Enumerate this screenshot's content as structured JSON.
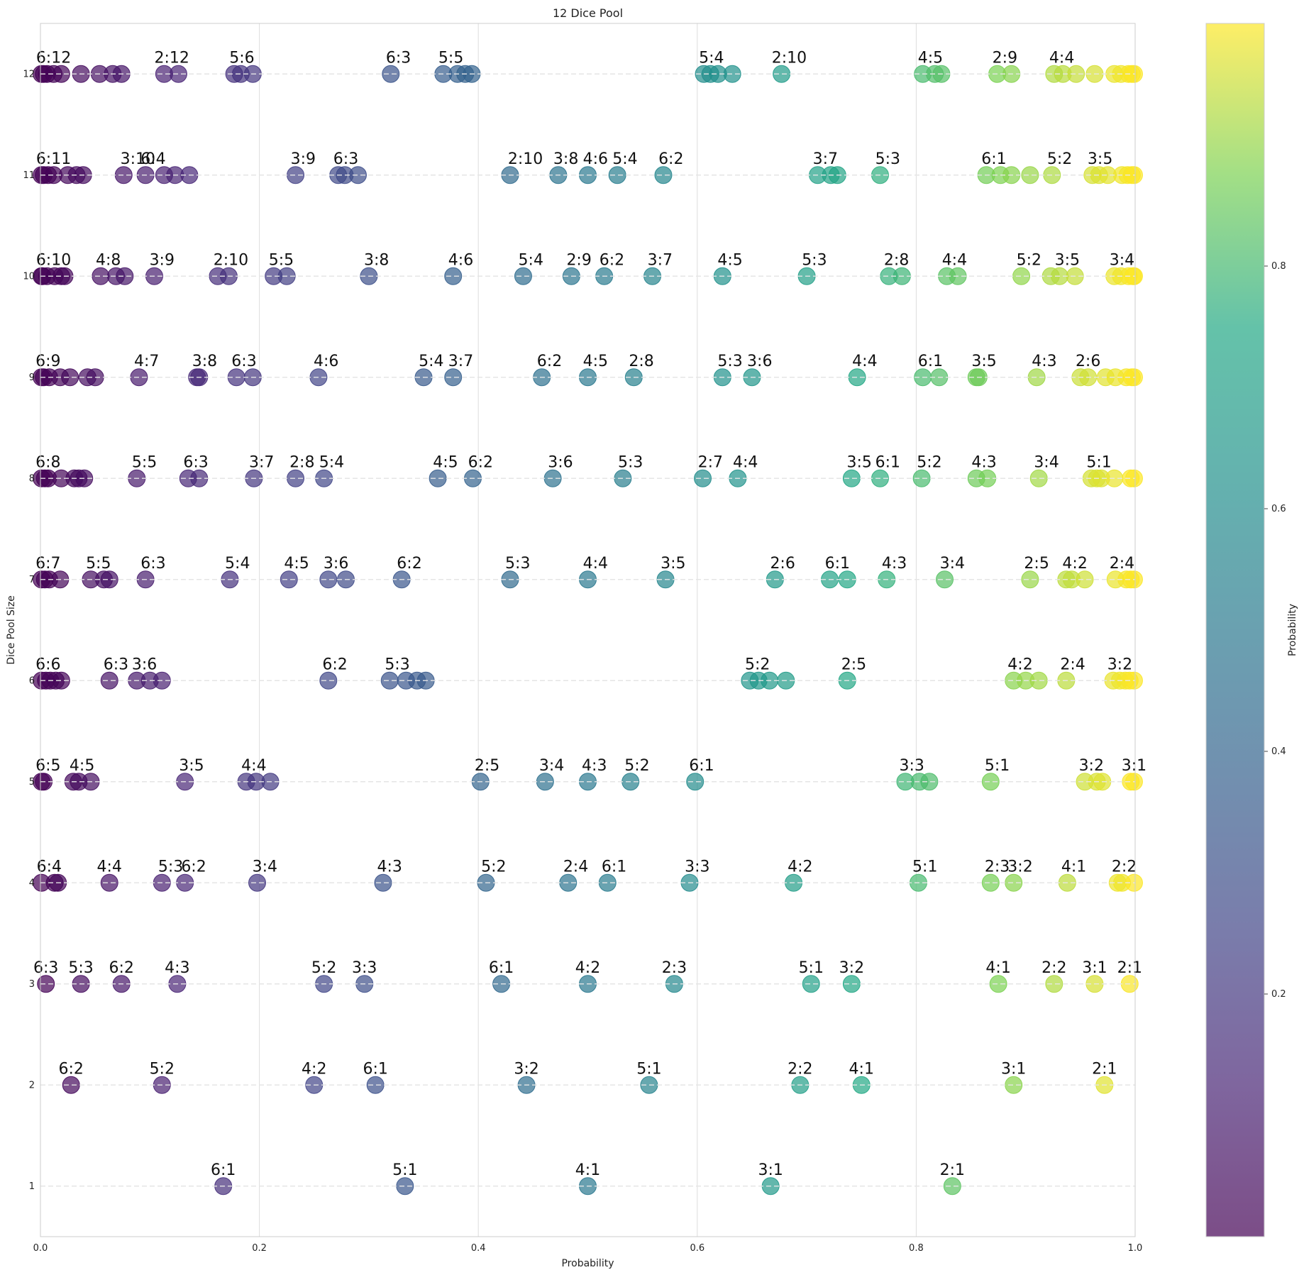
{
  "chart_data": {
    "type": "scatter",
    "title": "12 Dice Pool",
    "xlabel": "Probability",
    "ylabel": "Dice Pool Size",
    "xlim": [
      0,
      1
    ],
    "ylim": [
      0.5,
      12.5
    ],
    "x_ticks": [
      "0.0",
      "0.2",
      "0.4",
      "0.6",
      "0.8",
      "1.0"
    ],
    "y_ticks": [
      "1",
      "2",
      "3",
      "4",
      "5",
      "6",
      "7",
      "8",
      "9",
      "10",
      "11",
      "12"
    ],
    "colorbar": {
      "label": "Probability",
      "ticks": [
        "0.2",
        "0.4",
        "0.6",
        "0.8"
      ],
      "cmap": "viridis",
      "alpha": 0.7
    },
    "grid": true,
    "rows": [
      {
        "pool": 1,
        "x": [
          0.167,
          0.333,
          0.5,
          0.667,
          0.833
        ],
        "labels": [
          {
            "text": "6:1",
            "x": 0.167
          },
          {
            "text": "5:1",
            "x": 0.333
          },
          {
            "text": "4:1",
            "x": 0.5
          },
          {
            "text": "3:1",
            "x": 0.667
          },
          {
            "text": "2:1",
            "x": 0.833
          }
        ]
      },
      {
        "pool": 2,
        "x": [
          0.028,
          0.111,
          0.25,
          0.306,
          0.444,
          0.556,
          0.694,
          0.75,
          0.889,
          0.972
        ],
        "labels": [
          {
            "text": "6:2",
            "x": 0.028
          },
          {
            "text": "5:2",
            "x": 0.111
          },
          {
            "text": "4:2",
            "x": 0.25
          },
          {
            "text": "6:1",
            "x": 0.306
          },
          {
            "text": "3:2",
            "x": 0.444
          },
          {
            "text": "5:1",
            "x": 0.556
          },
          {
            "text": "2:2",
            "x": 0.694
          },
          {
            "text": "4:1",
            "x": 0.75
          },
          {
            "text": "3:1",
            "x": 0.889
          },
          {
            "text": "2:1",
            "x": 0.972
          }
        ]
      },
      {
        "pool": 3,
        "x": [
          0.005,
          0.037,
          0.074,
          0.125,
          0.259,
          0.296,
          0.421,
          0.5,
          0.579,
          0.704,
          0.741,
          0.875,
          0.926,
          0.963,
          0.995
        ],
        "labels": [
          {
            "text": "6:3",
            "x": 0.005
          },
          {
            "text": "5:3",
            "x": 0.037
          },
          {
            "text": "6:2",
            "x": 0.074
          },
          {
            "text": "4:3",
            "x": 0.125
          },
          {
            "text": "5:2",
            "x": 0.259
          },
          {
            "text": "3:3",
            "x": 0.296
          },
          {
            "text": "6:1",
            "x": 0.421
          },
          {
            "text": "4:2",
            "x": 0.5
          },
          {
            "text": "2:3",
            "x": 0.579
          },
          {
            "text": "5:1",
            "x": 0.704
          },
          {
            "text": "3:2",
            "x": 0.741
          },
          {
            "text": "4:1",
            "x": 0.875
          },
          {
            "text": "2:2",
            "x": 0.926
          },
          {
            "text": "3:1",
            "x": 0.963
          },
          {
            "text": "2:1",
            "x": 0.995
          }
        ]
      },
      {
        "pool": 4,
        "x": [
          0.001,
          0.013,
          0.016,
          0.063,
          0.111,
          0.132,
          0.198,
          0.313,
          0.407,
          0.482,
          0.518,
          0.593,
          0.688,
          0.802,
          0.868,
          0.889,
          0.938,
          0.984,
          0.988,
          0.999
        ],
        "labels": [
          {
            "text": "6:4",
            "x": 0.008
          },
          {
            "text": "4:4",
            "x": 0.063
          },
          {
            "text": "5:3",
            "x": 0.119
          },
          {
            "text": "6:2",
            "x": 0.14
          },
          {
            "text": "3:4",
            "x": 0.205
          },
          {
            "text": "4:3",
            "x": 0.319
          },
          {
            "text": "5:2",
            "x": 0.414
          },
          {
            "text": "2:4",
            "x": 0.489
          },
          {
            "text": "6:1",
            "x": 0.524
          },
          {
            "text": "3:3",
            "x": 0.6
          },
          {
            "text": "4:2",
            "x": 0.694
          },
          {
            "text": "5:1",
            "x": 0.808
          },
          {
            "text": "2:3",
            "x": 0.874
          },
          {
            "text": "3:2",
            "x": 0.895
          },
          {
            "text": "4:1",
            "x": 0.944
          },
          {
            "text": "2:2",
            "x": 0.99
          }
        ]
      },
      {
        "pool": 5,
        "x": [
          0.001,
          0.003,
          0.03,
          0.035,
          0.046,
          0.132,
          0.188,
          0.197,
          0.21,
          0.402,
          0.461,
          0.5,
          0.539,
          0.598,
          0.79,
          0.803,
          0.812,
          0.868,
          0.954,
          0.965,
          0.97,
          0.996,
          0.999
        ],
        "labels": [
          {
            "text": "6:5",
            "x": 0.007
          },
          {
            "text": "4:5",
            "x": 0.038
          },
          {
            "text": "3:5",
            "x": 0.138
          },
          {
            "text": "4:4",
            "x": 0.195
          },
          {
            "text": "2:5",
            "x": 0.408
          },
          {
            "text": "3:4",
            "x": 0.467
          },
          {
            "text": "4:3",
            "x": 0.506
          },
          {
            "text": "5:2",
            "x": 0.545
          },
          {
            "text": "6:1",
            "x": 0.604
          },
          {
            "text": "3:3",
            "x": 0.796
          },
          {
            "text": "5:1",
            "x": 0.874
          },
          {
            "text": "3:2",
            "x": 0.96
          },
          {
            "text": "3:1",
            "x": 0.999
          }
        ]
      },
      {
        "pool": 6,
        "x": [
          0.001,
          0.005,
          0.009,
          0.014,
          0.019,
          0.063,
          0.088,
          0.1,
          0.111,
          0.263,
          0.319,
          0.334,
          0.344,
          0.352,
          0.648,
          0.656,
          0.666,
          0.681,
          0.737,
          0.889,
          0.9,
          0.912,
          0.937,
          0.98,
          0.986,
          0.991,
          0.995,
          0.999
        ],
        "labels": [
          {
            "text": "6:6",
            "x": 0.007
          },
          {
            "text": "6:3",
            "x": 0.069
          },
          {
            "text": "3:6",
            "x": 0.095
          },
          {
            "text": "6:2",
            "x": 0.269
          },
          {
            "text": "5:3",
            "x": 0.326
          },
          {
            "text": "5:2",
            "x": 0.655
          },
          {
            "text": "2:5",
            "x": 0.743
          },
          {
            "text": "4:2",
            "x": 0.895
          },
          {
            "text": "2:4",
            "x": 0.943
          },
          {
            "text": "3:2",
            "x": 0.986
          }
        ]
      },
      {
        "pool": 7,
        "x": [
          0.001,
          0.004,
          0.008,
          0.018,
          0.046,
          0.058,
          0.063,
          0.096,
          0.173,
          0.227,
          0.263,
          0.279,
          0.33,
          0.429,
          0.5,
          0.571,
          0.671,
          0.721,
          0.737,
          0.773,
          0.826,
          0.904,
          0.937,
          0.942,
          0.954,
          0.982,
          0.992,
          0.996,
          0.999
        ],
        "labels": [
          {
            "text": "6:7",
            "x": 0.007
          },
          {
            "text": "5:5",
            "x": 0.053
          },
          {
            "text": "6:3",
            "x": 0.103
          },
          {
            "text": "5:4",
            "x": 0.18
          },
          {
            "text": "4:5",
            "x": 0.234
          },
          {
            "text": "3:6",
            "x": 0.27
          },
          {
            "text": "6:2",
            "x": 0.337
          },
          {
            "text": "5:3",
            "x": 0.436
          },
          {
            "text": "4:4",
            "x": 0.507
          },
          {
            "text": "3:5",
            "x": 0.578
          },
          {
            "text": "2:6",
            "x": 0.678
          },
          {
            "text": "6:1",
            "x": 0.728
          },
          {
            "text": "4:3",
            "x": 0.78
          },
          {
            "text": "3:4",
            "x": 0.833
          },
          {
            "text": "2:5",
            "x": 0.91
          },
          {
            "text": "4:2",
            "x": 0.945
          },
          {
            "text": "2:4",
            "x": 0.988
          }
        ]
      },
      {
        "pool": 8,
        "x": [
          0.001,
          0.004,
          0.007,
          0.019,
          0.031,
          0.035,
          0.04,
          0.088,
          0.135,
          0.145,
          0.195,
          0.233,
          0.259,
          0.363,
          0.395,
          0.468,
          0.532,
          0.605,
          0.637,
          0.741,
          0.767,
          0.805,
          0.855,
          0.865,
          0.912,
          0.96,
          0.965,
          0.969,
          0.981,
          0.996,
          0.999
        ],
        "labels": [
          {
            "text": "6:8",
            "x": 0.007
          },
          {
            "text": "5:5",
            "x": 0.095
          },
          {
            "text": "6:3",
            "x": 0.142
          },
          {
            "text": "3:7",
            "x": 0.202
          },
          {
            "text": "2:8",
            "x": 0.239
          },
          {
            "text": "5:4",
            "x": 0.266
          },
          {
            "text": "4:5",
            "x": 0.37
          },
          {
            "text": "6:2",
            "x": 0.402
          },
          {
            "text": "3:6",
            "x": 0.475
          },
          {
            "text": "5:3",
            "x": 0.539
          },
          {
            "text": "2:7",
            "x": 0.612
          },
          {
            "text": "4:4",
            "x": 0.644
          },
          {
            "text": "3:5",
            "x": 0.748
          },
          {
            "text": "6:1",
            "x": 0.774
          },
          {
            "text": "5:2",
            "x": 0.812
          },
          {
            "text": "4:3",
            "x": 0.862
          },
          {
            "text": "3:4",
            "x": 0.919
          },
          {
            "text": "5:1",
            "x": 0.967
          }
        ]
      },
      {
        "pool": 9,
        "x": [
          0.001,
          0.003,
          0.008,
          0.018,
          0.027,
          0.043,
          0.05,
          0.09,
          0.143,
          0.145,
          0.179,
          0.194,
          0.254,
          0.35,
          0.377,
          0.458,
          0.5,
          0.542,
          0.623,
          0.65,
          0.746,
          0.806,
          0.821,
          0.855,
          0.857,
          0.91,
          0.95,
          0.957,
          0.973,
          0.982,
          0.992,
          0.997,
          0.999
        ],
        "labels": [
          {
            "text": "6:9",
            "x": 0.007
          },
          {
            "text": "4:7",
            "x": 0.097
          },
          {
            "text": "3:8",
            "x": 0.15
          },
          {
            "text": "6:3",
            "x": 0.186
          },
          {
            "text": "4:6",
            "x": 0.261
          },
          {
            "text": "5:4",
            "x": 0.357
          },
          {
            "text": "3:7",
            "x": 0.384
          },
          {
            "text": "6:2",
            "x": 0.465
          },
          {
            "text": "4:5",
            "x": 0.507
          },
          {
            "text": "2:8",
            "x": 0.549
          },
          {
            "text": "5:3",
            "x": 0.63
          },
          {
            "text": "3:6",
            "x": 0.657
          },
          {
            "text": "4:4",
            "x": 0.753
          },
          {
            "text": "6:1",
            "x": 0.813
          },
          {
            "text": "3:5",
            "x": 0.862
          },
          {
            "text": "4:3",
            "x": 0.917
          },
          {
            "text": "2:6",
            "x": 0.957
          }
        ]
      },
      {
        "pool": 10,
        "x": [
          0.001,
          0.002,
          0.006,
          0.013,
          0.019,
          0.022,
          0.055,
          0.069,
          0.077,
          0.104,
          0.162,
          0.172,
          0.213,
          0.225,
          0.3,
          0.377,
          0.441,
          0.485,
          0.515,
          0.559,
          0.623,
          0.7,
          0.775,
          0.787,
          0.828,
          0.838,
          0.896,
          0.923,
          0.931,
          0.945,
          0.981,
          0.987,
          0.994,
          0.998,
          0.999
        ],
        "labels": [
          {
            "text": "6:10",
            "x": 0.012
          },
          {
            "text": "4:8",
            "x": 0.062
          },
          {
            "text": "3:9",
            "x": 0.111
          },
          {
            "text": "2:10",
            "x": 0.174
          },
          {
            "text": "5:5",
            "x": 0.22
          },
          {
            "text": "3:8",
            "x": 0.307
          },
          {
            "text": "4:6",
            "x": 0.384
          },
          {
            "text": "5:4",
            "x": 0.448
          },
          {
            "text": "2:9",
            "x": 0.492
          },
          {
            "text": "6:2",
            "x": 0.522
          },
          {
            "text": "3:7",
            "x": 0.566
          },
          {
            "text": "4:5",
            "x": 0.63
          },
          {
            "text": "5:3",
            "x": 0.707
          },
          {
            "text": "2:8",
            "x": 0.782
          },
          {
            "text": "4:4",
            "x": 0.835
          },
          {
            "text": "5:2",
            "x": 0.903
          },
          {
            "text": "3:5",
            "x": 0.938
          },
          {
            "text": "3:4",
            "x": 0.988
          }
        ]
      },
      {
        "pool": 11,
        "x": [
          0.001,
          0.003,
          0.007,
          0.012,
          0.025,
          0.033,
          0.039,
          0.076,
          0.096,
          0.113,
          0.123,
          0.136,
          0.233,
          0.272,
          0.278,
          0.29,
          0.429,
          0.473,
          0.5,
          0.527,
          0.569,
          0.71,
          0.722,
          0.728,
          0.767,
          0.864,
          0.877,
          0.887,
          0.904,
          0.924,
          0.961,
          0.967,
          0.975,
          0.988,
          0.993,
          0.997,
          0.999
        ],
        "labels": [
          {
            "text": "6:11",
            "x": 0.012
          },
          {
            "text": "3:10",
            "x": 0.089
          },
          {
            "text": "6:4",
            "x": 0.103
          },
          {
            "text": "3:9",
            "x": 0.24
          },
          {
            "text": "6:3",
            "x": 0.279
          },
          {
            "text": "2:10",
            "x": 0.443
          },
          {
            "text": "3:8",
            "x": 0.48
          },
          {
            "text": "4:6",
            "x": 0.507
          },
          {
            "text": "5:4",
            "x": 0.534
          },
          {
            "text": "6:2",
            "x": 0.576
          },
          {
            "text": "3:7",
            "x": 0.717
          },
          {
            "text": "5:3",
            "x": 0.774
          },
          {
            "text": "6:1",
            "x": 0.871
          },
          {
            "text": "5:2",
            "x": 0.931
          },
          {
            "text": "3:5",
            "x": 0.968
          }
        ]
      },
      {
        "pool": 12,
        "x": [
          0.001,
          0.003,
          0.006,
          0.012,
          0.019,
          0.037,
          0.054,
          0.066,
          0.074,
          0.113,
          0.126,
          0.177,
          0.183,
          0.194,
          0.32,
          0.368,
          0.381,
          0.388,
          0.394,
          0.606,
          0.612,
          0.619,
          0.632,
          0.677,
          0.806,
          0.817,
          0.823,
          0.874,
          0.887,
          0.926,
          0.934,
          0.946,
          0.963,
          0.981,
          0.987,
          0.994,
          0.997,
          0.999
        ],
        "labels": [
          {
            "text": "6:12",
            "x": 0.012
          },
          {
            "text": "2:12",
            "x": 0.12
          },
          {
            "text": "5:6",
            "x": 0.184
          },
          {
            "text": "6:3",
            "x": 0.327
          },
          {
            "text": "5:5",
            "x": 0.375
          },
          {
            "text": "5:4",
            "x": 0.613
          },
          {
            "text": "2:10",
            "x": 0.684
          },
          {
            "text": "4:5",
            "x": 0.813
          },
          {
            "text": "2:9",
            "x": 0.881
          },
          {
            "text": "4:4",
            "x": 0.933
          }
        ]
      }
    ]
  }
}
